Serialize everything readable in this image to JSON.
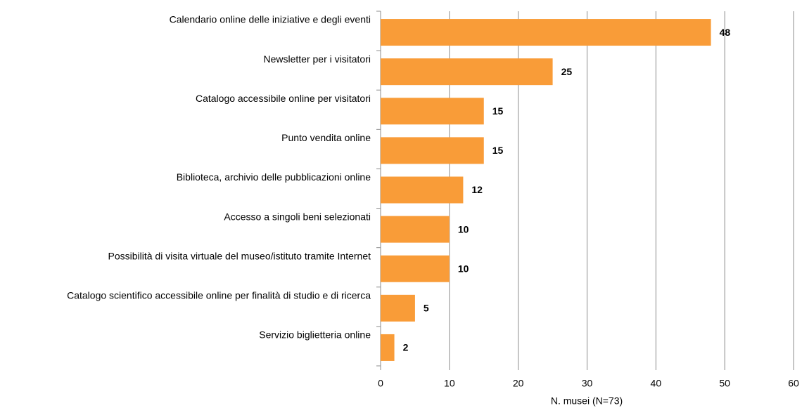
{
  "chart_data": {
    "type": "barh",
    "categories": [
      "Calendario online delle iniziative e degli eventi",
      "Newsletter per i visitatori",
      "Catalogo accessibile online per visitatori",
      "Punto vendita online",
      "Biblioteca, archivio delle pubblicazioni online",
      "Accesso a singoli beni selezionati",
      "Possibilità di visita virtuale del museo/istituto tramite Internet",
      "Catalogo scientifico accessibile online per finalità di studio e di ricerca",
      "Servizio biglietteria online"
    ],
    "values": [
      48,
      25,
      15,
      15,
      12,
      10,
      10,
      5,
      2
    ],
    "color": "#f99c38",
    "xlabel": "N. musei (N=73)",
    "xlim": [
      0,
      60
    ],
    "xticks": [
      0,
      10,
      20,
      30,
      40,
      50,
      60
    ],
    "grid": true
  }
}
